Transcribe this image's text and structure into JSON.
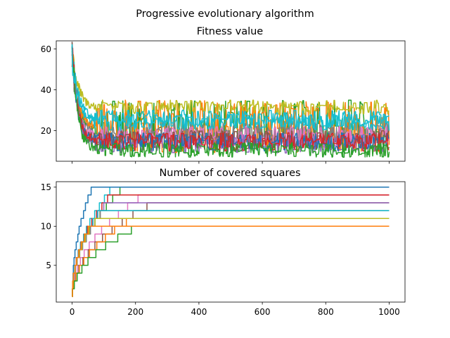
{
  "figure": {
    "suptitle": "Progressive evolutionary algorithm"
  },
  "chart_data": [
    {
      "type": "line",
      "title": "Fitness value",
      "xlabel": "",
      "ylabel": "",
      "xlim": [
        -50,
        1050
      ],
      "ylim": [
        5,
        64
      ],
      "yticks": [
        20,
        40,
        60
      ],
      "xticks": [
        0,
        200,
        400,
        600,
        800,
        1000
      ],
      "show_xtick_labels": false,
      "grid": false,
      "legend": "none",
      "n_points": 1001,
      "series": [
        {
          "color": "#2ca02c",
          "start": 58,
          "band": [
            7,
            35
          ]
        },
        {
          "color": "#ff7f0e",
          "start": 57,
          "band": [
            9,
            35
          ]
        },
        {
          "color": "#bcbd22",
          "start": 61,
          "band": [
            28,
            35
          ]
        },
        {
          "color": "#17becf",
          "start": 59,
          "band": [
            22,
            30
          ]
        },
        {
          "color": "#7f7f7f",
          "start": 55,
          "band": [
            13,
            24
          ]
        },
        {
          "color": "#e377c2",
          "start": 56,
          "band": [
            12,
            22
          ]
        },
        {
          "color": "#8c564b",
          "start": 57,
          "band": [
            11,
            20
          ]
        },
        {
          "color": "#9467bd",
          "start": 60,
          "band": [
            9,
            18
          ]
        },
        {
          "color": "#1f77b4",
          "start": 58,
          "band": [
            10,
            19
          ]
        },
        {
          "color": "#d62728",
          "start": 62,
          "band": [
            10,
            19
          ]
        },
        {
          "color": "#2ca02c",
          "start": 59,
          "band": [
            7,
            14
          ]
        },
        {
          "color": "#17becf",
          "start": 57,
          "band": [
            20,
            28
          ]
        }
      ]
    },
    {
      "type": "line",
      "title": "Number of covered squares",
      "xlabel": "",
      "ylabel": "",
      "xlim": [
        -50,
        1050
      ],
      "ylim": [
        0.3,
        15.7
      ],
      "yticks": [
        5,
        10,
        15
      ],
      "xticks": [
        0,
        200,
        400,
        600,
        800,
        1000
      ],
      "xtick_labels": [
        "0",
        "200",
        "400",
        "600",
        "800",
        "1000"
      ],
      "grid": false,
      "legend": "none",
      "series": [
        {
          "color": "#2ca02c",
          "final": 15,
          "reach_at": 150
        },
        {
          "color": "#17becf",
          "final": 15,
          "reach_at": 120
        },
        {
          "color": "#1f77b4",
          "final": 15,
          "reach_at": 60
        },
        {
          "color": "#e377c2",
          "final": 14,
          "reach_at": 210
        },
        {
          "color": "#d62728",
          "final": 14,
          "reach_at": 110
        },
        {
          "color": "#8c564b",
          "final": 13,
          "reach_at": 235
        },
        {
          "color": "#9467bd",
          "final": 13,
          "reach_at": 100
        },
        {
          "color": "#7f7f7f",
          "final": 12,
          "reach_at": 90
        },
        {
          "color": "#17becf",
          "final": 12,
          "reach_at": 80
        },
        {
          "color": "#ff7f0e",
          "final": 11,
          "reach_at": 170
        },
        {
          "color": "#bcbd22",
          "final": 11,
          "reach_at": 70
        },
        {
          "color": "#2ca02c",
          "final": 10,
          "reach_at": 185
        },
        {
          "color": "#ff7f0e",
          "final": 10,
          "reach_at": 50
        }
      ]
    }
  ]
}
